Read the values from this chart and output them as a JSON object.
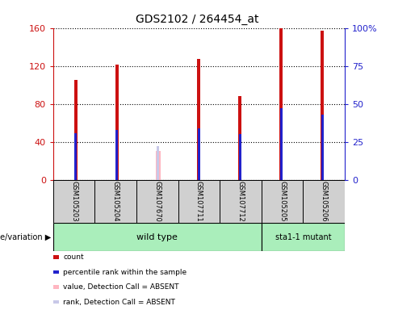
{
  "title": "GDS2102 / 264454_at",
  "samples": [
    "GSM105203",
    "GSM105204",
    "GSM107670",
    "GSM107711",
    "GSM107712",
    "GSM105205",
    "GSM105206"
  ],
  "count_values": [
    105,
    121,
    0,
    127,
    88,
    160,
    157
  ],
  "percentile_values": [
    30,
    32,
    0,
    33,
    29,
    46,
    42
  ],
  "absent_value_bar": [
    0,
    0,
    30,
    0,
    0,
    0,
    0
  ],
  "absent_rank_bar": [
    0,
    0,
    22,
    0,
    0,
    0,
    0
  ],
  "is_absent": [
    false,
    false,
    true,
    false,
    false,
    false,
    false
  ],
  "wild_type_count": 5,
  "mutant_count": 2,
  "left_ylim": [
    0,
    160
  ],
  "right_ylim": [
    0,
    100
  ],
  "left_yticks": [
    0,
    40,
    80,
    120,
    160
  ],
  "right_yticks": [
    0,
    25,
    50,
    75,
    100
  ],
  "right_yticklabels": [
    "0",
    "25",
    "50",
    "75",
    "100%"
  ],
  "count_color": "#CC1111",
  "percentile_color": "#2222CC",
  "absent_value_color": "#FFB6C1",
  "absent_rank_color": "#C8C8E8",
  "background_color": "#FFFFFF",
  "left_axis_color": "#CC1111",
  "right_axis_color": "#2222CC",
  "sample_box_color": "#D0D0D0",
  "green_light": "#AAEEBB",
  "green_dark": "#44CC66",
  "genotype_label": "genotype/variation",
  "legend_items": [
    {
      "label": "count",
      "color": "#CC1111"
    },
    {
      "label": "percentile rank within the sample",
      "color": "#2222CC"
    },
    {
      "label": "value, Detection Call = ABSENT",
      "color": "#FFB6C1"
    },
    {
      "label": "rank, Detection Call = ABSENT",
      "color": "#C8C8E8"
    }
  ]
}
